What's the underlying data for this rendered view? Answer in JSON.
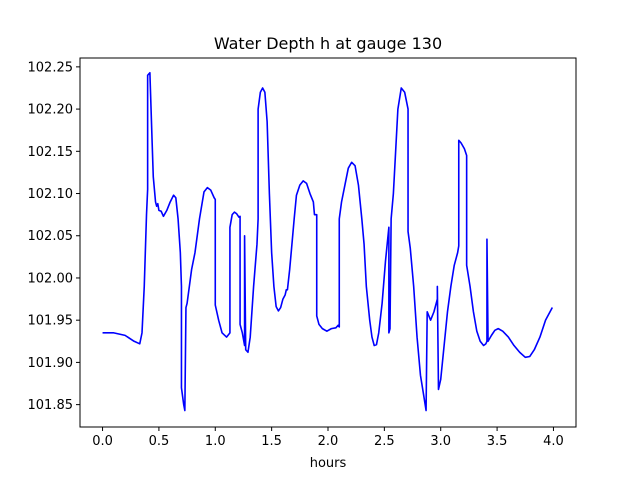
{
  "chart_data": {
    "type": "line",
    "title": "Water Depth h at gauge 130",
    "xlabel": "hours",
    "ylabel": "",
    "xlim": [
      -0.2,
      4.2
    ],
    "ylim": [
      101.8235,
      102.2605
    ],
    "x_ticks": [
      0.0,
      0.5,
      1.0,
      1.5,
      2.0,
      2.5,
      3.0,
      3.5,
      4.0
    ],
    "x_tick_labels": [
      "0.0",
      "0.5",
      "1.0",
      "1.5",
      "2.0",
      "2.5",
      "3.0",
      "3.5",
      "4.0"
    ],
    "y_ticks": [
      101.85,
      101.9,
      101.95,
      102.0,
      102.05,
      102.1,
      102.15,
      102.2,
      102.25
    ],
    "y_tick_labels": [
      "101.85",
      "101.90",
      "101.95",
      "102.00",
      "102.05",
      "102.10",
      "102.15",
      "102.20",
      "102.25"
    ],
    "grid": false,
    "legend": "none",
    "series": [
      {
        "color": "#0000ff",
        "points": [
          [
            0.0,
            101.935
          ],
          [
            0.1,
            101.935
          ],
          [
            0.2,
            101.932
          ],
          [
            0.28,
            101.925
          ],
          [
            0.33,
            101.922
          ],
          [
            0.35,
            101.935
          ],
          [
            0.37,
            101.99
          ],
          [
            0.39,
            102.075
          ],
          [
            0.4,
            102.105
          ],
          [
            0.4,
            102.24
          ],
          [
            0.42,
            102.243
          ],
          [
            0.44,
            102.16
          ],
          [
            0.45,
            102.12
          ],
          [
            0.47,
            102.09
          ],
          [
            0.48,
            102.085
          ],
          [
            0.49,
            102.088
          ],
          [
            0.5,
            102.08
          ],
          [
            0.52,
            102.079
          ],
          [
            0.54,
            102.073
          ],
          [
            0.57,
            102.08
          ],
          [
            0.6,
            102.09
          ],
          [
            0.63,
            102.098
          ],
          [
            0.65,
            102.095
          ],
          [
            0.67,
            102.07
          ],
          [
            0.69,
            102.03
          ],
          [
            0.7,
            101.99
          ],
          [
            0.7,
            101.87
          ],
          [
            0.72,
            101.85
          ],
          [
            0.73,
            101.843
          ],
          [
            0.74,
            101.965
          ],
          [
            0.75,
            101.97
          ],
          [
            0.77,
            101.99
          ],
          [
            0.79,
            102.01
          ],
          [
            0.82,
            102.03
          ],
          [
            0.86,
            102.07
          ],
          [
            0.9,
            102.102
          ],
          [
            0.93,
            102.107
          ],
          [
            0.96,
            102.104
          ],
          [
            0.99,
            102.095
          ],
          [
            1.0,
            102.093
          ],
          [
            1.0,
            101.968
          ],
          [
            1.03,
            101.95
          ],
          [
            1.06,
            101.935
          ],
          [
            1.1,
            101.93
          ],
          [
            1.13,
            101.935
          ],
          [
            1.13,
            102.06
          ],
          [
            1.15,
            102.075
          ],
          [
            1.17,
            102.078
          ],
          [
            1.19,
            102.076
          ],
          [
            1.21,
            102.072
          ],
          [
            1.22,
            102.073
          ],
          [
            1.22,
            101.945
          ],
          [
            1.24,
            101.935
          ],
          [
            1.26,
            101.92
          ],
          [
            1.26,
            102.05
          ],
          [
            1.27,
            101.915
          ],
          [
            1.29,
            101.912
          ],
          [
            1.31,
            101.93
          ],
          [
            1.34,
            101.99
          ],
          [
            1.37,
            102.04
          ],
          [
            1.38,
            102.07
          ],
          [
            1.38,
            102.2
          ],
          [
            1.4,
            102.22
          ],
          [
            1.42,
            102.225
          ],
          [
            1.44,
            102.22
          ],
          [
            1.46,
            102.185
          ],
          [
            1.48,
            102.1
          ],
          [
            1.5,
            102.03
          ],
          [
            1.52,
            101.99
          ],
          [
            1.54,
            101.966
          ],
          [
            1.56,
            101.961
          ],
          [
            1.58,
            101.965
          ],
          [
            1.6,
            101.975
          ],
          [
            1.62,
            101.98
          ],
          [
            1.63,
            101.986
          ],
          [
            1.64,
            101.986
          ],
          [
            1.66,
            102.01
          ],
          [
            1.68,
            102.04
          ],
          [
            1.7,
            102.07
          ],
          [
            1.72,
            102.098
          ],
          [
            1.75,
            102.11
          ],
          [
            1.78,
            102.115
          ],
          [
            1.81,
            102.112
          ],
          [
            1.84,
            102.1
          ],
          [
            1.87,
            102.09
          ],
          [
            1.88,
            102.075
          ],
          [
            1.9,
            102.075
          ],
          [
            1.9,
            101.955
          ],
          [
            1.92,
            101.945
          ],
          [
            1.95,
            101.94
          ],
          [
            1.99,
            101.937
          ],
          [
            2.03,
            101.94
          ],
          [
            2.07,
            101.941
          ],
          [
            2.09,
            101.944
          ],
          [
            2.1,
            101.942
          ],
          [
            2.1,
            102.07
          ],
          [
            2.12,
            102.09
          ],
          [
            2.15,
            102.11
          ],
          [
            2.18,
            102.13
          ],
          [
            2.21,
            102.137
          ],
          [
            2.24,
            102.133
          ],
          [
            2.27,
            102.11
          ],
          [
            2.3,
            102.07
          ],
          [
            2.32,
            102.04
          ],
          [
            2.34,
            101.99
          ],
          [
            2.37,
            101.95
          ],
          [
            2.39,
            101.93
          ],
          [
            2.41,
            101.92
          ],
          [
            2.43,
            101.921
          ],
          [
            2.45,
            101.935
          ],
          [
            2.48,
            101.97
          ],
          [
            2.51,
            102.02
          ],
          [
            2.54,
            102.06
          ],
          [
            2.54,
            101.935
          ],
          [
            2.55,
            101.94
          ],
          [
            2.56,
            102.07
          ],
          [
            2.58,
            102.1
          ],
          [
            2.6,
            102.15
          ],
          [
            2.62,
            102.2
          ],
          [
            2.65,
            102.225
          ],
          [
            2.68,
            102.22
          ],
          [
            2.71,
            102.2
          ],
          [
            2.71,
            102.055
          ],
          [
            2.73,
            102.035
          ],
          [
            2.76,
            101.99
          ],
          [
            2.79,
            101.93
          ],
          [
            2.82,
            101.885
          ],
          [
            2.85,
            101.86
          ],
          [
            2.87,
            101.843
          ],
          [
            2.88,
            101.96
          ],
          [
            2.91,
            101.95
          ],
          [
            2.94,
            101.96
          ],
          [
            2.97,
            101.975
          ],
          [
            2.97,
            101.99
          ],
          [
            2.98,
            101.868
          ],
          [
            3.0,
            101.88
          ],
          [
            3.03,
            101.92
          ],
          [
            3.06,
            101.96
          ],
          [
            3.09,
            101.99
          ],
          [
            3.12,
            102.015
          ],
          [
            3.15,
            102.03
          ],
          [
            3.16,
            102.038
          ],
          [
            3.16,
            102.163
          ],
          [
            3.18,
            102.16
          ],
          [
            3.21,
            102.153
          ],
          [
            3.23,
            102.145
          ],
          [
            3.23,
            102.015
          ],
          [
            3.26,
            101.99
          ],
          [
            3.29,
            101.96
          ],
          [
            3.32,
            101.937
          ],
          [
            3.35,
            101.925
          ],
          [
            3.38,
            101.92
          ],
          [
            3.4,
            101.922
          ],
          [
            3.41,
            101.925
          ],
          [
            3.41,
            102.046
          ],
          [
            3.42,
            101.925
          ],
          [
            3.45,
            101.932
          ],
          [
            3.48,
            101.938
          ],
          [
            3.51,
            101.94
          ],
          [
            3.55,
            101.937
          ],
          [
            3.6,
            101.93
          ],
          [
            3.65,
            101.92
          ],
          [
            3.7,
            101.912
          ],
          [
            3.75,
            101.906
          ],
          [
            3.79,
            101.907
          ],
          [
            3.83,
            101.915
          ],
          [
            3.88,
            101.93
          ],
          [
            3.93,
            101.95
          ],
          [
            3.99,
            101.965
          ]
        ]
      }
    ]
  }
}
